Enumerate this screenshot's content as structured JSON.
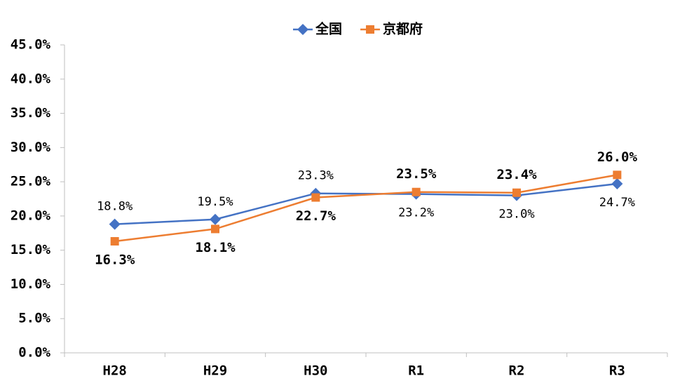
{
  "chart_data": {
    "type": "line",
    "categories": [
      "H28",
      "H29",
      "H30",
      "R1",
      "R2",
      "R3"
    ],
    "series": [
      {
        "name": "全国",
        "color": "#4472c4",
        "marker": "diamond",
        "values": [
          18.8,
          19.5,
          23.3,
          23.2,
          23.0,
          24.7
        ],
        "value_labels": [
          "18.8%",
          "19.5%",
          "23.3%",
          "23.2%",
          "23.0%",
          "24.7%"
        ]
      },
      {
        "name": "京都府",
        "color": "#ed7d31",
        "marker": "square",
        "values": [
          16.3,
          18.1,
          22.7,
          23.5,
          23.4,
          26.0
        ],
        "value_labels": [
          "16.3%",
          "18.1%",
          "22.7%",
          "23.5%",
          "23.4%",
          "26.0%"
        ]
      }
    ],
    "ylim": [
      0,
      45
    ],
    "yticks": [
      {
        "value": 0,
        "label": "0.0%"
      },
      {
        "value": 5,
        "label": "5.0%"
      },
      {
        "value": 10,
        "label": "10.0%"
      },
      {
        "value": 15,
        "label": "15.0%"
      },
      {
        "value": 20,
        "label": "20.0%"
      },
      {
        "value": 25,
        "label": "25.0%"
      },
      {
        "value": 30,
        "label": "30.0%"
      },
      {
        "value": 35,
        "label": "35.0%"
      },
      {
        "value": 40,
        "label": "40.0%"
      },
      {
        "value": 45,
        "label": "45.0%"
      }
    ],
    "grid": false,
    "legend": "top"
  }
}
